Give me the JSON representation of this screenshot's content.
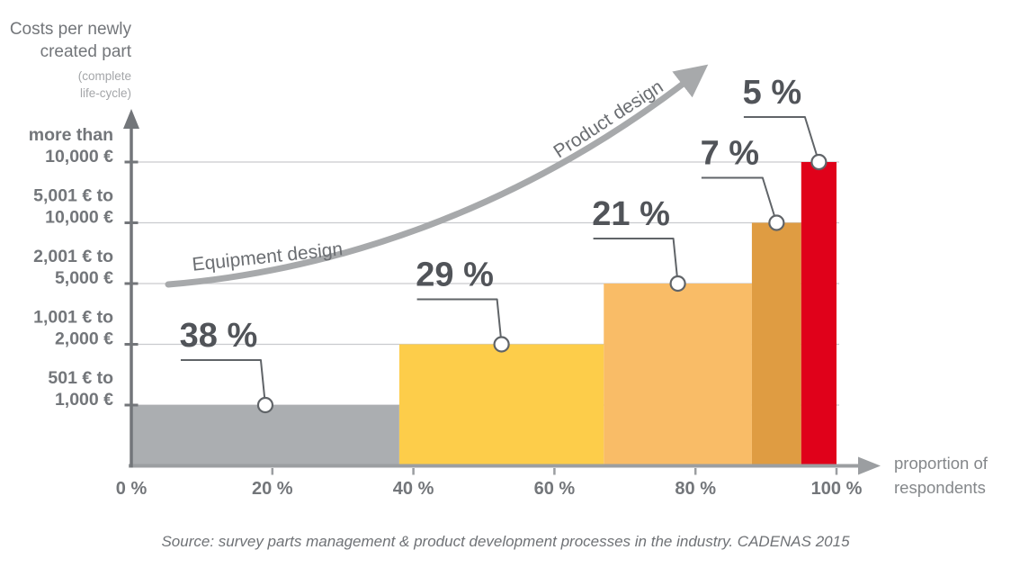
{
  "y_axis_title": {
    "line1": "Costs per newly",
    "line2": "created part",
    "note_line1": "(complete",
    "note_line2": "life-cycle)"
  },
  "x_axis_title": {
    "line1": "proportion of",
    "line2": "respondents"
  },
  "source_note": "Source: survey parts management & product development processes in the industry. CADENAS 2015",
  "chart_data": {
    "type": "bar",
    "subtype": "stepped-histogram",
    "title": "Costs per newly created part (complete life-cycle) by proportion of respondents",
    "xlabel": "proportion of respondents",
    "ylabel": "Costs per newly created part (complete life-cycle)",
    "xlim": [
      0,
      100
    ],
    "grid": true,
    "x_ticks": [
      {
        "value": 0,
        "label": "0 %"
      },
      {
        "value": 20,
        "label": "20 %"
      },
      {
        "value": 40,
        "label": "40 %"
      },
      {
        "value": 60,
        "label": "60 %"
      },
      {
        "value": 80,
        "label": "80 %"
      },
      {
        "value": 100,
        "label": "100 %"
      }
    ],
    "y_ticks": [
      {
        "level": 1,
        "lines": [
          "501 € to",
          "1,000 €"
        ]
      },
      {
        "level": 2,
        "lines": [
          "1,001 € to",
          "2,000 €"
        ]
      },
      {
        "level": 3,
        "lines": [
          "2,001 € to",
          "5,000 €"
        ]
      },
      {
        "level": 4,
        "lines": [
          "5,001 € to",
          "10,000 €"
        ]
      },
      {
        "level": 5,
        "lines": [
          "more than",
          "10,000 €"
        ]
      }
    ],
    "segments": [
      {
        "label": "38 %",
        "value": 38,
        "cost_band": "501 € to 1,000 €",
        "level": 1,
        "color": "#abaeb1"
      },
      {
        "label": "29 %",
        "value": 29,
        "cost_band": "1,001 € to 2,000 €",
        "level": 2,
        "color": "#fdcd4a"
      },
      {
        "label": "21 %",
        "value": 21,
        "cost_band": "2,001 € to 5,000 €",
        "level": 3,
        "color": "#f9bc67"
      },
      {
        "label": "7 %",
        "value": 7,
        "cost_band": "5,001 € to 10,000 €",
        "level": 4,
        "color": "#df9c42"
      },
      {
        "label": "5 %",
        "value": 5,
        "cost_band": "more than 10,000 €",
        "level": 5,
        "color": "#e0011a"
      }
    ],
    "trend_annotations": [
      {
        "label": "Equipment design"
      },
      {
        "label": "Product design"
      }
    ],
    "colors": {
      "grid": "#c9cbce",
      "y_axis": "#73767a",
      "x_axis": "#9b9ea1",
      "axis_text": "#73767a",
      "value_label": "#515459",
      "callout": "#606468",
      "trend_curve": "#a7a9ab",
      "annotation_text": "#6b6e72"
    }
  }
}
